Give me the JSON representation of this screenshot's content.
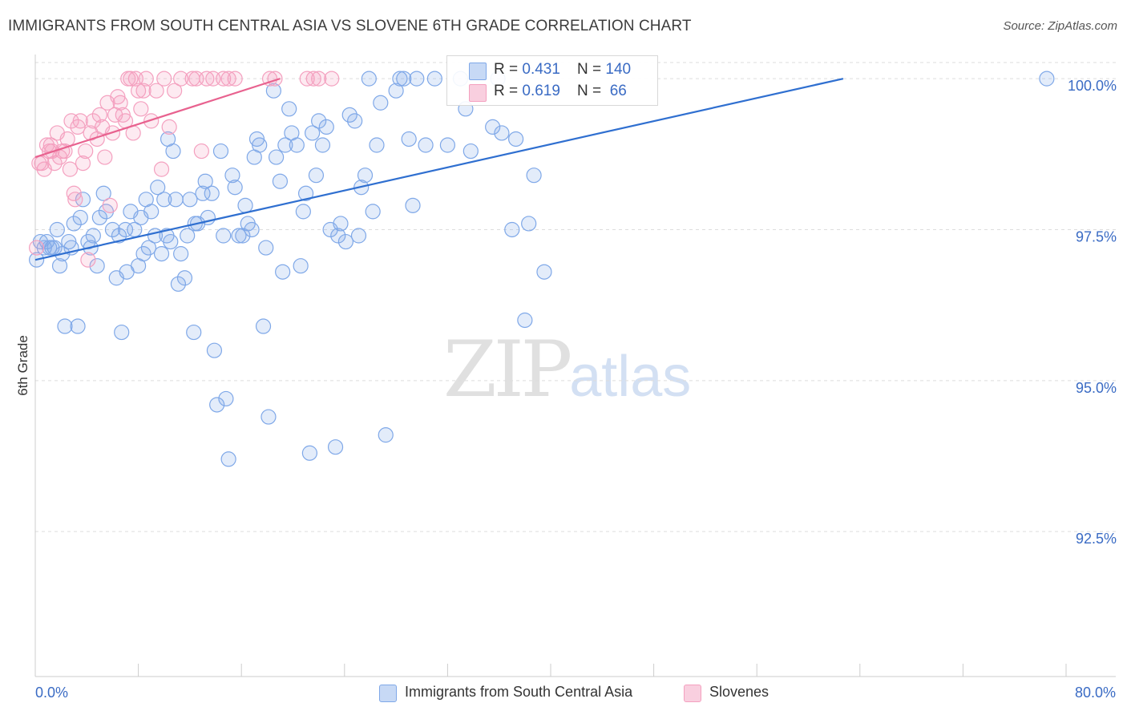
{
  "title": "IMMIGRANTS FROM SOUTH CENTRAL ASIA VS SLOVENE 6TH GRADE CORRELATION CHART",
  "source": "Source: ZipAtlas.com",
  "watermark": {
    "zip": "ZIP",
    "atlas": "atlas"
  },
  "legend": {
    "rows": [
      {
        "r_label": "R = ",
        "r_value": "0.431",
        "n_label": "N = ",
        "n_value": "140",
        "color": "#7fa8e8"
      },
      {
        "r_label": "R = ",
        "r_value": "0.619",
        "n_label": "N = ",
        "n_value": " 66",
        "color": "#f4a0bf"
      }
    ]
  },
  "bottom_legend": [
    {
      "label": "Immigrants from South Central Asia",
      "color": "#7fa8e8"
    },
    {
      "label": "Slovenes",
      "color": "#f4a0bf"
    }
  ],
  "chart_data": {
    "type": "scatter",
    "title": "IMMIGRANTS FROM SOUTH CENTRAL ASIA VS SLOVENE 6TH GRADE CORRELATION CHART",
    "xlabel": "",
    "ylabel": "6th Grade",
    "xlim": [
      0,
      80
    ],
    "ylim": [
      90.1,
      100.4
    ],
    "x_tick_labels": [
      "0.0%",
      "80.0%"
    ],
    "y_ticks": [
      92.5,
      95.0,
      97.5,
      100.0
    ],
    "y_tick_labels": [
      "92.5%",
      "95.0%",
      "97.5%",
      "100.0%"
    ],
    "series": [
      {
        "name": "Immigrants from South Central Asia",
        "color": "#7fa8e8",
        "line_color": "#2f6fd0",
        "trend": {
          "x": [
            0.0,
            62.7
          ],
          "y": [
            97.0,
            100.0
          ]
        },
        "points": [
          [
            0.1,
            97.0
          ],
          [
            0.4,
            97.3
          ],
          [
            0.7,
            97.2
          ],
          [
            0.9,
            97.3
          ],
          [
            1.1,
            97.2
          ],
          [
            1.3,
            97.2
          ],
          [
            1.5,
            97.2
          ],
          [
            1.7,
            97.5
          ],
          [
            1.9,
            96.9
          ],
          [
            2.1,
            97.1
          ],
          [
            2.3,
            95.9
          ],
          [
            2.6,
            97.3
          ],
          [
            2.8,
            97.2
          ],
          [
            3.0,
            97.6
          ],
          [
            3.3,
            95.9
          ],
          [
            3.5,
            97.7
          ],
          [
            3.7,
            98.0
          ],
          [
            4.1,
            97.3
          ],
          [
            4.3,
            97.2
          ],
          [
            4.5,
            97.4
          ],
          [
            4.8,
            96.9
          ],
          [
            5.0,
            97.7
          ],
          [
            5.3,
            98.1
          ],
          [
            5.5,
            97.8
          ],
          [
            6.0,
            97.5
          ],
          [
            6.3,
            96.7
          ],
          [
            6.5,
            97.4
          ],
          [
            6.7,
            95.8
          ],
          [
            7.0,
            97.5
          ],
          [
            7.1,
            96.8
          ],
          [
            7.4,
            97.8
          ],
          [
            7.7,
            97.5
          ],
          [
            8.0,
            96.9
          ],
          [
            8.2,
            97.7
          ],
          [
            8.4,
            97.1
          ],
          [
            8.6,
            98.0
          ],
          [
            8.8,
            97.2
          ],
          [
            9.0,
            97.8
          ],
          [
            9.3,
            97.4
          ],
          [
            9.5,
            98.2
          ],
          [
            9.8,
            97.1
          ],
          [
            10.0,
            98.0
          ],
          [
            10.2,
            97.4
          ],
          [
            10.3,
            99.0
          ],
          [
            10.5,
            97.3
          ],
          [
            10.7,
            98.8
          ],
          [
            10.9,
            98.0
          ],
          [
            11.1,
            96.6
          ],
          [
            11.3,
            97.1
          ],
          [
            11.6,
            96.7
          ],
          [
            11.8,
            97.4
          ],
          [
            12.0,
            98.0
          ],
          [
            12.3,
            95.8
          ],
          [
            12.4,
            97.6
          ],
          [
            12.6,
            97.6
          ],
          [
            13.0,
            98.1
          ],
          [
            13.2,
            98.3
          ],
          [
            13.4,
            97.7
          ],
          [
            13.7,
            98.1
          ],
          [
            13.9,
            95.5
          ],
          [
            14.1,
            94.6
          ],
          [
            14.4,
            98.8
          ],
          [
            14.6,
            97.4
          ],
          [
            14.8,
            94.7
          ],
          [
            15.0,
            93.7
          ],
          [
            15.3,
            98.4
          ],
          [
            15.5,
            98.2
          ],
          [
            15.8,
            97.4
          ],
          [
            16.1,
            97.4
          ],
          [
            16.3,
            97.9
          ],
          [
            16.5,
            97.6
          ],
          [
            16.8,
            97.5
          ],
          [
            17.0,
            98.7
          ],
          [
            17.2,
            99.0
          ],
          [
            17.4,
            98.9
          ],
          [
            17.7,
            95.9
          ],
          [
            17.9,
            97.2
          ],
          [
            18.1,
            94.4
          ],
          [
            18.5,
            99.8
          ],
          [
            18.7,
            98.7
          ],
          [
            19.0,
            98.3
          ],
          [
            19.2,
            96.8
          ],
          [
            19.4,
            98.9
          ],
          [
            19.7,
            99.5
          ],
          [
            19.9,
            99.1
          ],
          [
            20.3,
            98.9
          ],
          [
            20.6,
            96.9
          ],
          [
            20.8,
            97.8
          ],
          [
            21.0,
            98.1
          ],
          [
            21.3,
            93.8
          ],
          [
            21.5,
            99.1
          ],
          [
            21.8,
            98.4
          ],
          [
            22.0,
            99.3
          ],
          [
            22.3,
            98.9
          ],
          [
            22.6,
            99.2
          ],
          [
            22.9,
            97.5
          ],
          [
            23.3,
            93.9
          ],
          [
            23.5,
            97.4
          ],
          [
            23.7,
            97.6
          ],
          [
            24.1,
            97.3
          ],
          [
            24.4,
            99.4
          ],
          [
            24.8,
            99.3
          ],
          [
            25.1,
            97.4
          ],
          [
            25.3,
            98.2
          ],
          [
            25.6,
            98.4
          ],
          [
            25.9,
            100.0
          ],
          [
            26.2,
            97.8
          ],
          [
            26.5,
            98.9
          ],
          [
            26.8,
            99.6
          ],
          [
            27.2,
            94.1
          ],
          [
            28.0,
            99.8
          ],
          [
            28.3,
            100.0
          ],
          [
            28.6,
            100.0
          ],
          [
            29.0,
            99.0
          ],
          [
            29.3,
            97.9
          ],
          [
            29.6,
            100.0
          ],
          [
            30.3,
            98.9
          ],
          [
            31.0,
            100.0
          ],
          [
            32.0,
            98.9
          ],
          [
            33.0,
            100.0
          ],
          [
            33.4,
            99.5
          ],
          [
            33.8,
            98.8
          ],
          [
            35.5,
            99.2
          ],
          [
            35.9,
            100.0
          ],
          [
            36.2,
            99.1
          ],
          [
            37.3,
            99.0
          ],
          [
            38.0,
            96.0
          ],
          [
            37.0,
            97.5
          ],
          [
            38.3,
            97.6
          ],
          [
            39.5,
            96.8
          ],
          [
            38.7,
            98.4
          ],
          [
            78.5,
            100.0
          ]
        ]
      },
      {
        "name": "Slovenes",
        "color": "#f4a0bf",
        "line_color": "#e8628f",
        "trend": {
          "x": [
            0.0,
            19.0
          ],
          "y": [
            98.7,
            100.0
          ]
        },
        "points": [
          [
            0.1,
            97.2
          ],
          [
            0.3,
            98.6
          ],
          [
            0.5,
            98.6
          ],
          [
            0.7,
            98.5
          ],
          [
            0.9,
            98.9
          ],
          [
            1.1,
            98.8
          ],
          [
            1.3,
            98.8
          ],
          [
            1.5,
            98.6
          ],
          [
            1.7,
            99.1
          ],
          [
            1.9,
            98.7
          ],
          [
            2.1,
            98.8
          ],
          [
            2.3,
            98.8
          ],
          [
            2.5,
            99.0
          ],
          [
            2.7,
            98.5
          ],
          [
            2.8,
            99.3
          ],
          [
            3.0,
            98.1
          ],
          [
            3.1,
            98.0
          ],
          [
            3.3,
            99.2
          ],
          [
            3.5,
            99.3
          ],
          [
            3.7,
            98.6
          ],
          [
            3.9,
            98.8
          ],
          [
            4.1,
            97.0
          ],
          [
            4.3,
            99.1
          ],
          [
            4.5,
            99.3
          ],
          [
            4.8,
            99.0
          ],
          [
            5.0,
            99.4
          ],
          [
            5.2,
            99.2
          ],
          [
            5.4,
            98.7
          ],
          [
            5.6,
            99.6
          ],
          [
            5.8,
            97.9
          ],
          [
            6.0,
            99.1
          ],
          [
            6.2,
            99.4
          ],
          [
            6.4,
            99.7
          ],
          [
            6.6,
            99.6
          ],
          [
            6.8,
            99.4
          ],
          [
            7.0,
            99.3
          ],
          [
            7.2,
            100.0
          ],
          [
            7.4,
            100.0
          ],
          [
            7.6,
            99.1
          ],
          [
            7.8,
            100.0
          ],
          [
            8.0,
            99.8
          ],
          [
            8.2,
            99.5
          ],
          [
            8.4,
            99.8
          ],
          [
            8.6,
            100.0
          ],
          [
            9.0,
            99.3
          ],
          [
            9.4,
            99.8
          ],
          [
            9.8,
            98.5
          ],
          [
            10.0,
            100.0
          ],
          [
            10.4,
            99.2
          ],
          [
            10.8,
            99.8
          ],
          [
            11.3,
            100.0
          ],
          [
            12.2,
            100.0
          ],
          [
            12.5,
            100.0
          ],
          [
            12.9,
            98.8
          ],
          [
            13.3,
            100.0
          ],
          [
            13.8,
            100.0
          ],
          [
            14.6,
            100.0
          ],
          [
            15.0,
            100.0
          ],
          [
            15.5,
            100.0
          ],
          [
            18.2,
            100.0
          ],
          [
            18.6,
            100.0
          ],
          [
            21.1,
            100.0
          ],
          [
            21.6,
            100.0
          ],
          [
            22.0,
            100.0
          ],
          [
            23.0,
            100.0
          ],
          [
            1.2,
            98.9
          ]
        ]
      }
    ]
  }
}
